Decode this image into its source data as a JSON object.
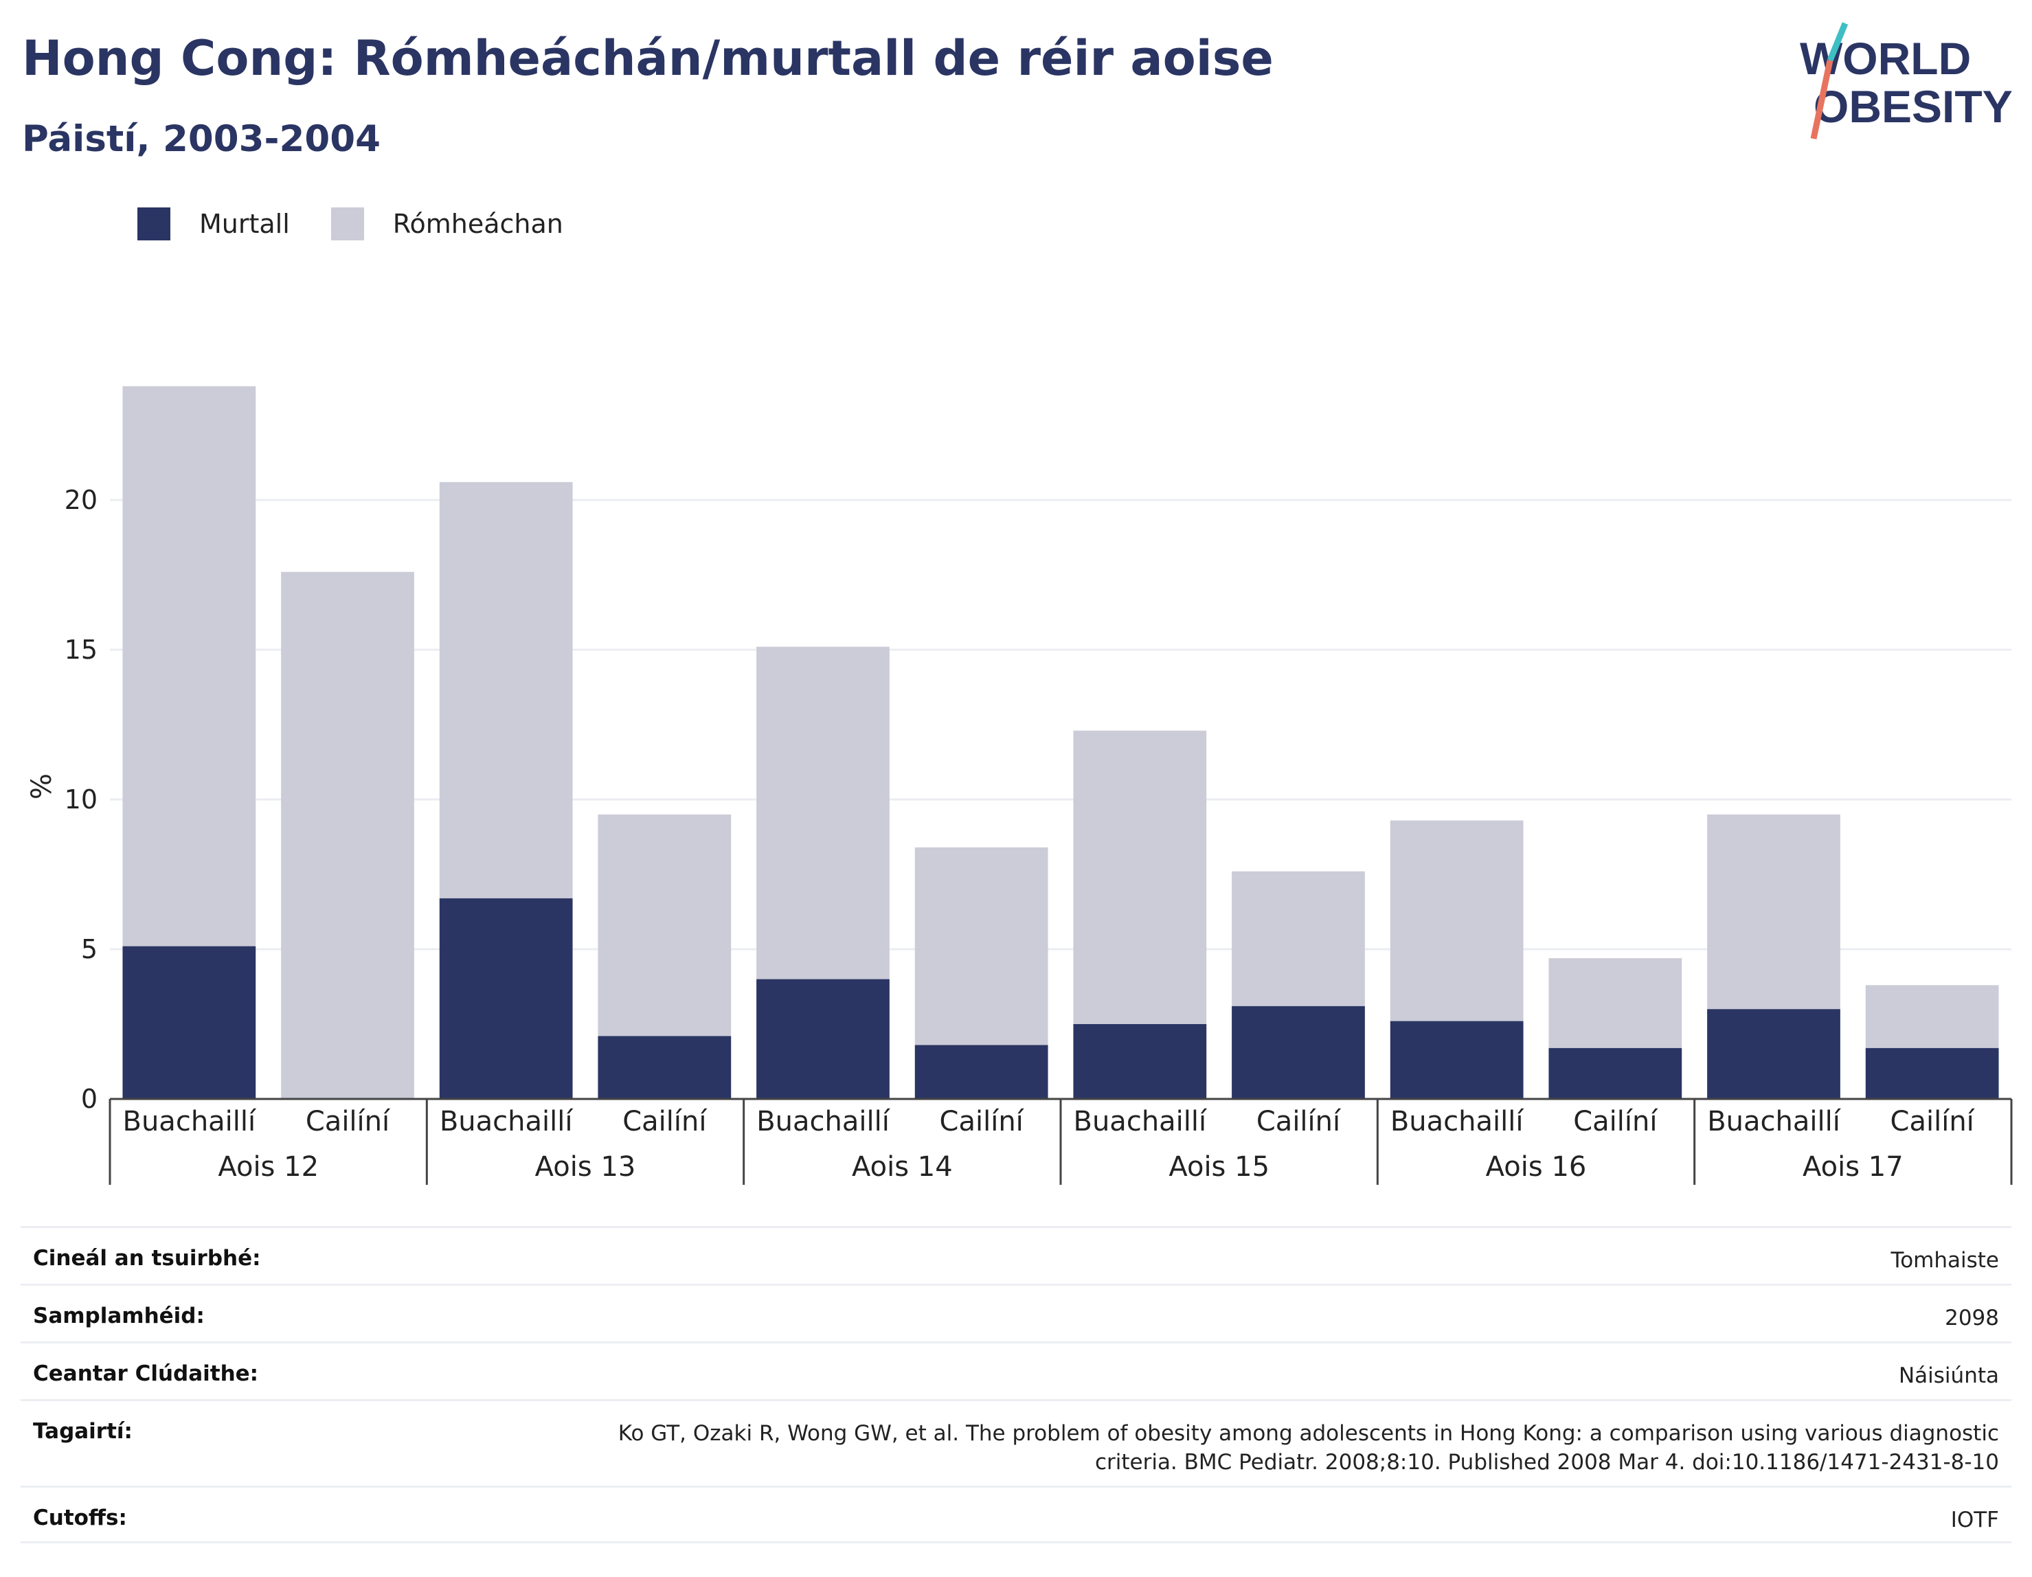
{
  "header": {
    "title": "Hong Cong: Rómheáchán/murtall de réir aoise",
    "subtitle": "Páistí, 2003-2004"
  },
  "logo": {
    "line1": "WORLD",
    "line2": "OBESITY"
  },
  "colors": {
    "obese": "#2a3563",
    "overweight": "#cbccd8",
    "title": "#2a3563",
    "logo_teal": "#3dbfc3",
    "logo_coral": "#e8745f"
  },
  "legend": [
    {
      "label": "Murtall",
      "color": "#2a3563"
    },
    {
      "label": "Rómheáchan",
      "color": "#cbccd8"
    }
  ],
  "chart_data": {
    "type": "bar",
    "stacked": true,
    "ylabel": "%",
    "ylim": [
      0,
      25
    ],
    "yticks": [
      0,
      5,
      10,
      15,
      20
    ],
    "grid": true,
    "legend_position": "top-left",
    "groups": [
      "Aois 12",
      "Aois 13",
      "Aois 14",
      "Aois 15",
      "Aois 16",
      "Aois 17"
    ],
    "subcategories": [
      "Buachaillí",
      "Cailíní"
    ],
    "series": [
      {
        "name": "Murtall",
        "values": [
          5.1,
          0,
          6.7,
          2.1,
          4.0,
          1.8,
          2.5,
          3.1,
          2.6,
          1.7,
          3.0,
          1.7
        ]
      },
      {
        "name": "Rómheáchan",
        "values": [
          18.7,
          17.6,
          13.9,
          7.4,
          11.1,
          6.6,
          9.8,
          4.5,
          6.7,
          3.0,
          6.5,
          2.1
        ]
      }
    ]
  },
  "meta": [
    {
      "key": "Cineál an tsuirbhé:",
      "value": "Tomhaiste"
    },
    {
      "key": "Samplamhéid:",
      "value": "2098"
    },
    {
      "key": "Ceantar Clúdaithe:",
      "value": "Náisiúnta"
    },
    {
      "key": "Tagairtí:",
      "value": "Ko GT, Ozaki R, Wong GW, et al. The problem of obesity among adolescents in Hong Kong: a comparison using various diagnostic criteria. BMC Pediatr. 2008;8:10. Published 2008 Mar 4. doi:10.1186/1471-2431-8-10"
    },
    {
      "key": "Cutoffs:",
      "value": "IOTF"
    }
  ]
}
